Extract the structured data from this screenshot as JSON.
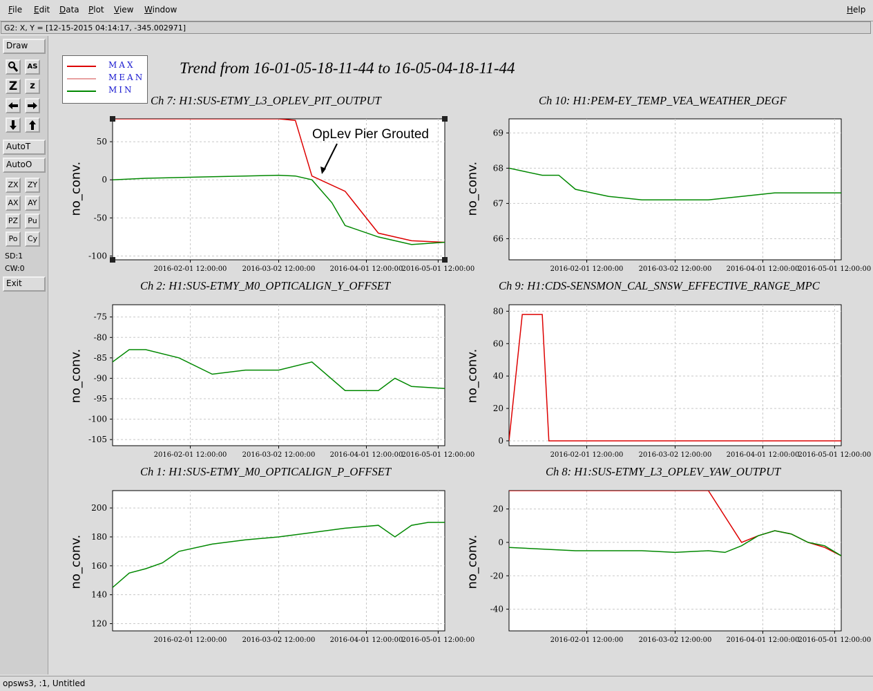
{
  "menu": {
    "file": "File",
    "edit": "Edit",
    "data": "Data",
    "plot": "Plot",
    "view": "View",
    "window": "Window",
    "help": "Help"
  },
  "coord_readout": "G2: X, Y = [12-15-2015 04:14:17, -345.002971]",
  "toolbar": {
    "draw": "Draw",
    "autot": "AutoT",
    "autoo": "AutoO",
    "zx": "ZX",
    "zy": "ZY",
    "ax": "AX",
    "ay": "AY",
    "pz": "PZ",
    "pu": "Pu",
    "po": "Po",
    "cy": "Cy",
    "sd": "SD:1",
    "cw": "CW:0",
    "exit": "Exit",
    "icons": [
      "magnifier-icon",
      "label-icon",
      "zoom-in-icon",
      "zoom-out-icon",
      "arrow-left-icon",
      "arrow-right-icon",
      "arrow-down-icon",
      "arrow-up-icon"
    ],
    "z_big": "Z",
    "z_small": "z",
    "as_label": "AS"
  },
  "legend": {
    "max": "MAX",
    "mean": "MEAN",
    "min": "MIN",
    "colors": {
      "max": "#dd0000",
      "mean": "#e8a0a0",
      "min": "#008800"
    }
  },
  "main_title": "Trend from 16-01-05-18-11-44 to 16-05-04-18-11-44",
  "status": "opsws3, :1, Untitled",
  "annotation": "OpLev Pier Grouted",
  "chart_data": [
    {
      "id": "ch7",
      "type": "line",
      "title": "Ch 7: H1:SUS-ETMY_L3_OPLEV_PIT_OUTPUT",
      "ylabel": "no_conv.",
      "ylim": [
        -105,
        80
      ],
      "yticks": [
        50,
        0,
        -50,
        -100
      ],
      "xticks": [
        "2016-02-01 12:00:00",
        "2016-03-02 12:00:00",
        "2016-04-01 12:00:00",
        "2016-05-01 12:00:00"
      ],
      "xtick_fracs": [
        0.234,
        0.5,
        0.764,
        0.98
      ],
      "grid": true,
      "series": [
        {
          "name": "MAX",
          "color": "#dd0000",
          "x": [
            0,
            0.1,
            0.2,
            0.3,
            0.4,
            0.5,
            0.55,
            0.6,
            0.7,
            0.8,
            0.9,
            1.0
          ],
          "y": [
            80,
            80,
            80,
            80,
            80,
            80,
            78,
            5,
            -15,
            -70,
            -80,
            -82
          ]
        },
        {
          "name": "MIN",
          "color": "#008800",
          "x": [
            0,
            0.1,
            0.2,
            0.3,
            0.4,
            0.5,
            0.55,
            0.6,
            0.66,
            0.7,
            0.8,
            0.9,
            1.0
          ],
          "y": [
            0,
            2,
            3,
            4,
            5,
            6,
            5,
            0,
            -30,
            -60,
            -75,
            -85,
            -82
          ]
        }
      ]
    },
    {
      "id": "ch10",
      "type": "line",
      "title": "Ch 10: H1:PEM-EY_TEMP_VEA_WEATHER_DEGF",
      "ylabel": "no_conv.",
      "ylim": [
        65.4,
        69.4
      ],
      "yticks": [
        69,
        68,
        67,
        66
      ],
      "xticks": [
        "2016-02-01 12:00:00",
        "2016-03-02 12:00:00",
        "2016-04-01 12:00:00",
        "2016-05-01 12:00:00"
      ],
      "xtick_fracs": [
        0.234,
        0.5,
        0.764,
        0.98
      ],
      "grid": true,
      "series": [
        {
          "name": "MIN",
          "color": "#008800",
          "x": [
            0,
            0.05,
            0.1,
            0.15,
            0.2,
            0.3,
            0.4,
            0.5,
            0.6,
            0.7,
            0.8,
            0.9,
            1.0
          ],
          "y": [
            68.0,
            67.9,
            67.8,
            67.8,
            67.4,
            67.2,
            67.1,
            67.1,
            67.1,
            67.2,
            67.3,
            67.3,
            67.3
          ]
        }
      ]
    },
    {
      "id": "ch2",
      "type": "line",
      "title": "Ch 2: H1:SUS-ETMY_M0_OPTICALIGN_Y_OFFSET",
      "ylabel": "no_conv.",
      "ylim": [
        -106.5,
        -72
      ],
      "yticks": [
        -75,
        -80,
        -85,
        -90,
        -95,
        -100,
        -105
      ],
      "xticks": [
        "2016-02-01 12:00:00",
        "2016-03-02 12:00:00",
        "2016-04-01 12:00:00",
        "2016-05-01 12:00:00"
      ],
      "xtick_fracs": [
        0.234,
        0.5,
        0.764,
        0.98
      ],
      "grid": true,
      "series": [
        {
          "name": "MIN",
          "color": "#008800",
          "x": [
            0,
            0.05,
            0.1,
            0.2,
            0.3,
            0.4,
            0.5,
            0.6,
            0.7,
            0.8,
            0.85,
            0.9,
            1.0
          ],
          "y": [
            -86,
            -83,
            -83,
            -85,
            -89,
            -88,
            -88,
            -86,
            -93,
            -93,
            -90,
            -92,
            -92.5
          ]
        }
      ]
    },
    {
      "id": "ch9",
      "type": "line",
      "title": "Ch 9: H1:CDS-SENSMON_CAL_SNSW_EFFECTIVE_RANGE_MPC",
      "ylabel": "no_conv.",
      "ylim": [
        -3,
        84
      ],
      "yticks": [
        80,
        60,
        40,
        20,
        0
      ],
      "xticks": [
        "2016-02-01 12:00:00",
        "2016-03-02 12:00:00",
        "2016-04-01 12:00:00",
        "2016-05-01 12:00:00"
      ],
      "xtick_fracs": [
        0.234,
        0.5,
        0.764,
        0.98
      ],
      "grid": true,
      "series": [
        {
          "name": "MAX",
          "color": "#dd0000",
          "x": [
            0,
            0.04,
            0.1,
            0.12,
            0.2,
            0.4,
            0.5,
            0.6,
            0.7,
            0.8,
            0.9,
            1.0
          ],
          "y": [
            0,
            78,
            78,
            0,
            0,
            0,
            0,
            0,
            0,
            0,
            0,
            0
          ]
        }
      ]
    },
    {
      "id": "ch1",
      "type": "line",
      "title": "Ch 1: H1:SUS-ETMY_M0_OPTICALIGN_P_OFFSET",
      "ylabel": "no_conv.",
      "ylim": [
        115,
        212
      ],
      "yticks": [
        200,
        180,
        160,
        140,
        120
      ],
      "xticks": [
        "2016-02-01 12:00:00",
        "2016-03-02 12:00:00",
        "2016-04-01 12:00:00",
        "2016-05-01 12:00:00"
      ],
      "xtick_fracs": [
        0.234,
        0.5,
        0.764,
        0.98
      ],
      "grid": true,
      "series": [
        {
          "name": "MIN",
          "color": "#008800",
          "x": [
            0,
            0.05,
            0.1,
            0.15,
            0.2,
            0.3,
            0.4,
            0.5,
            0.6,
            0.7,
            0.8,
            0.85,
            0.9,
            0.95,
            1.0
          ],
          "y": [
            145,
            155,
            158,
            162,
            170,
            175,
            178,
            180,
            183,
            186,
            188,
            180,
            188,
            190,
            190
          ]
        }
      ]
    },
    {
      "id": "ch8",
      "type": "line",
      "title": "Ch 8: H1:SUS-ETMY_L3_OPLEV_YAW_OUTPUT",
      "ylabel": "no_conv.",
      "ylim": [
        -53,
        31
      ],
      "yticks": [
        20,
        0,
        -20,
        -40
      ],
      "xticks": [
        "2016-02-01 12:00:00",
        "2016-03-02 12:00:00",
        "2016-04-01 12:00:00",
        "2016-05-01 12:00:00"
      ],
      "xtick_fracs": [
        0.234,
        0.5,
        0.764,
        0.98
      ],
      "grid": true,
      "series": [
        {
          "name": "MAX",
          "color": "#dd0000",
          "x": [
            0,
            0.1,
            0.2,
            0.3,
            0.4,
            0.5,
            0.6,
            0.7,
            0.75,
            0.8,
            0.85,
            0.9,
            0.95,
            1.0
          ],
          "y": [
            31,
            31,
            31,
            31,
            31,
            31,
            31,
            0,
            4,
            7,
            5,
            0,
            -3,
            -8
          ]
        },
        {
          "name": "MIN",
          "color": "#008800",
          "x": [
            0,
            0.1,
            0.2,
            0.3,
            0.4,
            0.5,
            0.6,
            0.65,
            0.7,
            0.75,
            0.8,
            0.85,
            0.9,
            0.95,
            1.0
          ],
          "y": [
            -3,
            -4,
            -5,
            -5,
            -5,
            -6,
            -5,
            -6,
            -2,
            4,
            7,
            5,
            0,
            -2,
            -8
          ]
        }
      ]
    }
  ]
}
